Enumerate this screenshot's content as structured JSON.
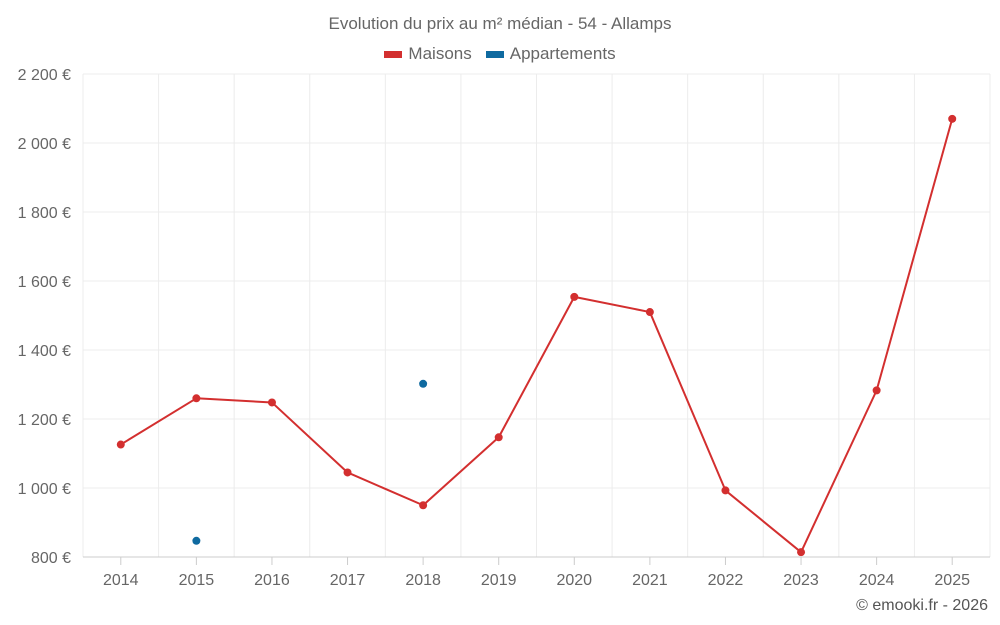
{
  "chart_data": {
    "type": "line",
    "title": "Evolution du prix au m² médian - 54 - Allamps",
    "categories": [
      "2014",
      "2015",
      "2016",
      "2017",
      "2018",
      "2019",
      "2020",
      "2021",
      "2022",
      "2023",
      "2024",
      "2025"
    ],
    "ylim": [
      800,
      2200
    ],
    "yticks": [
      800,
      1000,
      1200,
      1400,
      1600,
      1800,
      2000,
      2200
    ],
    "ytick_labels": [
      "800 €",
      "1 000 €",
      "1 200 €",
      "1 400 €",
      "1 600 €",
      "1 800 €",
      "2 000 €",
      "2 200 €"
    ],
    "series": [
      {
        "name": "Maisons",
        "color": "#d32f2f",
        "values": [
          1126,
          1260,
          1248,
          1045,
          950,
          1147,
          1554,
          1510,
          993,
          814,
          1283,
          2070
        ]
      },
      {
        "name": "Appartements",
        "color": "#0f6aa0",
        "values": [
          null,
          847,
          null,
          null,
          1302,
          null,
          null,
          null,
          null,
          null,
          null,
          null
        ]
      }
    ],
    "grid": true,
    "legend": "top-center",
    "credit": "© emooki.fr - 2026"
  }
}
